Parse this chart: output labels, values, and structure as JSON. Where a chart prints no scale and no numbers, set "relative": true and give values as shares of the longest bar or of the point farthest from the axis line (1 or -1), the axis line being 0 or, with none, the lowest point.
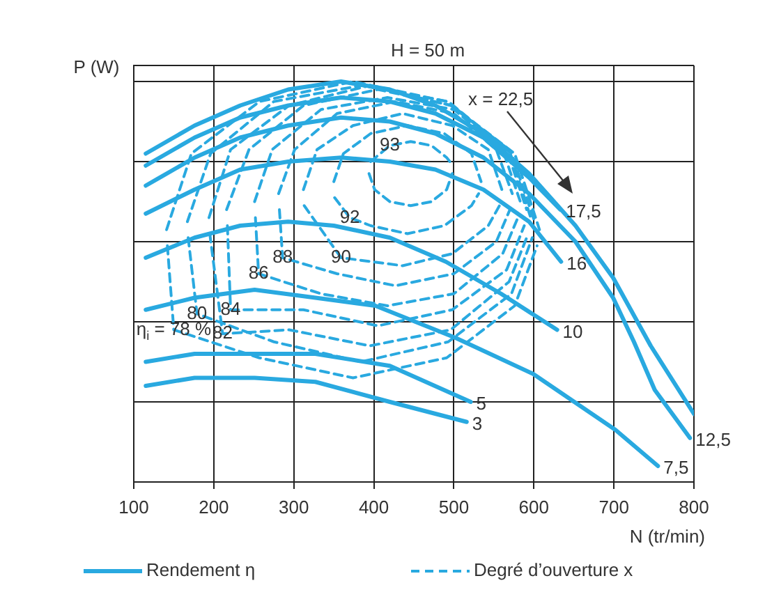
{
  "chart_data": {
    "type": "line",
    "title": "H = 50 m",
    "xlabel": "N (tr/min)",
    "ylabel": "P (W)",
    "relative": true,
    "xlim": [
      100,
      800
    ],
    "xticks": [
      100,
      200,
      300,
      400,
      500,
      600,
      700,
      800
    ],
    "grid": true,
    "legend": "bottom",
    "marker": "none",
    "annotations": [
      "x = 22,5",
      "Rendement η",
      "Degré d’ouverture x"
    ],
    "series": [
      {
        "color": "#29a9e0",
        "line_style": "solid",
        "x": [
          115,
          176,
          233,
          293,
          359,
          420,
          477,
          537,
          594,
          652,
          699,
          746,
          800
        ],
        "values": [
          0.82,
          0.89,
          0.94,
          0.98,
          1.0,
          0.98,
          0.94,
          0.87,
          0.77,
          0.64,
          0.51,
          0.34,
          0.17
        ]
      },
      {
        "name": "17,5",
        "color": "#29a9e0",
        "line_style": "solid",
        "x": [
          115,
          176,
          233,
          293,
          359,
          420,
          477,
          537,
          594,
          633
        ],
        "values": [
          0.79,
          0.86,
          0.91,
          0.94,
          0.96,
          0.95,
          0.92,
          0.86,
          0.76,
          0.68
        ]
      },
      {
        "name": "12,5",
        "color": "#29a9e0",
        "line_style": "solid",
        "x": [
          115,
          176,
          233,
          293,
          359,
          420,
          477,
          537,
          594,
          652,
          699,
          725,
          751,
          795
        ],
        "values": [
          0.74,
          0.81,
          0.86,
          0.89,
          0.91,
          0.9,
          0.87,
          0.81,
          0.72,
          0.6,
          0.46,
          0.35,
          0.23,
          0.11
        ]
      },
      {
        "name": "16",
        "color": "#29a9e0",
        "line_style": "solid",
        "x": [
          115,
          176,
          233,
          293,
          359,
          420,
          477,
          537,
          594,
          634
        ],
        "values": [
          0.67,
          0.73,
          0.78,
          0.8,
          0.81,
          0.8,
          0.78,
          0.73,
          0.65,
          0.55
        ]
      },
      {
        "name": "10",
        "color": "#29a9e0",
        "line_style": "solid",
        "x": [
          115,
          176,
          233,
          293,
          350,
          420,
          490,
          559,
          629
        ],
        "values": [
          0.56,
          0.61,
          0.64,
          0.65,
          0.64,
          0.61,
          0.55,
          0.47,
          0.38
        ]
      },
      {
        "name": "7,5",
        "color": "#29a9e0",
        "line_style": "solid",
        "x": [
          115,
          176,
          251,
          327,
          402,
          502,
          599,
          702,
          755
        ],
        "values": [
          0.43,
          0.46,
          0.48,
          0.46,
          0.44,
          0.36,
          0.27,
          0.13,
          0.04
        ]
      },
      {
        "name": "5",
        "color": "#29a9e0",
        "line_style": "solid",
        "x": [
          115,
          176,
          251,
          327,
          420,
          521
        ],
        "values": [
          0.3,
          0.32,
          0.32,
          0.32,
          0.29,
          0.2
        ]
      },
      {
        "name": "3",
        "color": "#29a9e0",
        "line_style": "solid",
        "x": [
          115,
          176,
          251,
          327,
          420,
          516
        ],
        "values": [
          0.24,
          0.26,
          0.26,
          0.25,
          0.2,
          0.15
        ]
      },
      {
        "name": "93",
        "color": "#29a9e0",
        "line_style": "dashed",
        "x": [
          396,
          420,
          446,
          472,
          491,
          495
        ],
        "values": [
          0.8,
          0.84,
          0.85,
          0.84,
          0.81,
          0.8
        ]
      },
      {
        "color": "#29a9e0",
        "line_style": "dashed",
        "x": [
          394,
          401,
          420,
          446,
          472,
          491,
          498
        ],
        "values": [
          0.77,
          0.73,
          0.7,
          0.69,
          0.7,
          0.73,
          0.77
        ]
      },
      {
        "name": "92",
        "color": "#29a9e0",
        "line_style": "dashed",
        "x": [
          351,
          370,
          396,
          442,
          488,
          522,
          531
        ],
        "values": [
          0.71,
          0.66,
          0.64,
          0.62,
          0.64,
          0.69,
          0.72
        ]
      },
      {
        "color": "#29a9e0",
        "line_style": "dashed",
        "x": [
          350,
          362,
          396,
          442,
          488,
          522,
          534
        ],
        "values": [
          0.75,
          0.82,
          0.87,
          0.89,
          0.87,
          0.82,
          0.75
        ]
      },
      {
        "name": "90",
        "color": "#29a9e0",
        "line_style": "dashed",
        "x": [
          313,
          359,
          436,
          498,
          543,
          557
        ],
        "values": [
          0.69,
          0.56,
          0.54,
          0.57,
          0.64,
          0.69
        ]
      },
      {
        "color": "#29a9e0",
        "line_style": "dashed",
        "x": [
          312,
          329,
          374,
          436,
          498,
          543,
          560
        ],
        "values": [
          0.73,
          0.83,
          0.89,
          0.92,
          0.89,
          0.83,
          0.73
        ]
      },
      {
        "name": "88",
        "color": "#29a9e0",
        "line_style": "dashed",
        "x": [
          282,
          286,
          354,
          427,
          500,
          553,
          570
        ],
        "values": [
          0.68,
          0.56,
          0.52,
          0.49,
          0.52,
          0.6,
          0.68
        ]
      },
      {
        "color": "#29a9e0",
        "line_style": "dashed",
        "x": [
          281,
          301,
          354,
          427,
          500,
          553,
          573
        ],
        "values": [
          0.72,
          0.83,
          0.92,
          0.95,
          0.92,
          0.83,
          0.72
        ]
      },
      {
        "name": "86",
        "color": "#29a9e0",
        "line_style": "dashed",
        "x": [
          252,
          256,
          334,
          417,
          500,
          561,
          580
        ],
        "values": [
          0.66,
          0.52,
          0.47,
          0.44,
          0.47,
          0.57,
          0.66
        ]
      },
      {
        "color": "#29a9e0",
        "line_style": "dashed",
        "x": [
          251,
          273,
          334,
          417,
          500,
          561,
          583
        ],
        "values": [
          0.7,
          0.83,
          0.93,
          0.96,
          0.93,
          0.83,
          0.7
        ]
      },
      {
        "name": "84",
        "color": "#29a9e0",
        "line_style": "dashed",
        "x": [
          217,
          221,
          312,
          405,
          498,
          566,
          588
        ],
        "values": [
          0.64,
          0.43,
          0.43,
          0.39,
          0.43,
          0.53,
          0.64
        ]
      },
      {
        "color": "#29a9e0",
        "line_style": "dashed",
        "x": [
          216,
          244,
          312,
          405,
          498,
          566,
          591
        ],
        "values": [
          0.68,
          0.83,
          0.94,
          0.98,
          0.94,
          0.83,
          0.68
        ]
      },
      {
        "name": "82",
        "color": "#29a9e0",
        "line_style": "dashed",
        "x": [
          195,
          211,
          294,
          395,
          496,
          569,
          593
        ],
        "values": [
          0.62,
          0.37,
          0.38,
          0.34,
          0.38,
          0.5,
          0.62
        ]
      },
      {
        "color": "#29a9e0",
        "line_style": "dashed",
        "x": [
          194,
          221,
          294,
          395,
          496,
          569,
          596
        ],
        "values": [
          0.66,
          0.83,
          0.94,
          0.99,
          0.94,
          0.83,
          0.66
        ]
      },
      {
        "name": "80",
        "color": "#29a9e0",
        "line_style": "dashed",
        "x": [
          168,
          179,
          275,
          384,
          493,
          572,
          598
        ],
        "values": [
          0.61,
          0.42,
          0.35,
          0.3,
          0.35,
          0.47,
          0.61
        ]
      },
      {
        "color": "#29a9e0",
        "line_style": "dashed",
        "x": [
          167,
          196,
          275,
          384,
          493,
          572,
          601
        ],
        "values": [
          0.65,
          0.82,
          0.95,
          0.99,
          0.95,
          0.82,
          0.65
        ]
      },
      {
        "name": "η$_{i}$ = 78 %",
        "color": "#29a9e0",
        "line_style": "dashed",
        "x": [
          142,
          150,
          257,
          374,
          491,
          576,
          604
        ],
        "values": [
          0.59,
          0.38,
          0.31,
          0.26,
          0.31,
          0.44,
          0.59
        ]
      },
      {
        "color": "#29a9e0",
        "line_style": "dashed",
        "x": [
          141,
          172,
          257,
          374,
          491,
          576,
          607
        ],
        "values": [
          0.63,
          0.82,
          0.95,
          1.0,
          0.95,
          0.82,
          0.63
        ]
      }
    ]
  }
}
